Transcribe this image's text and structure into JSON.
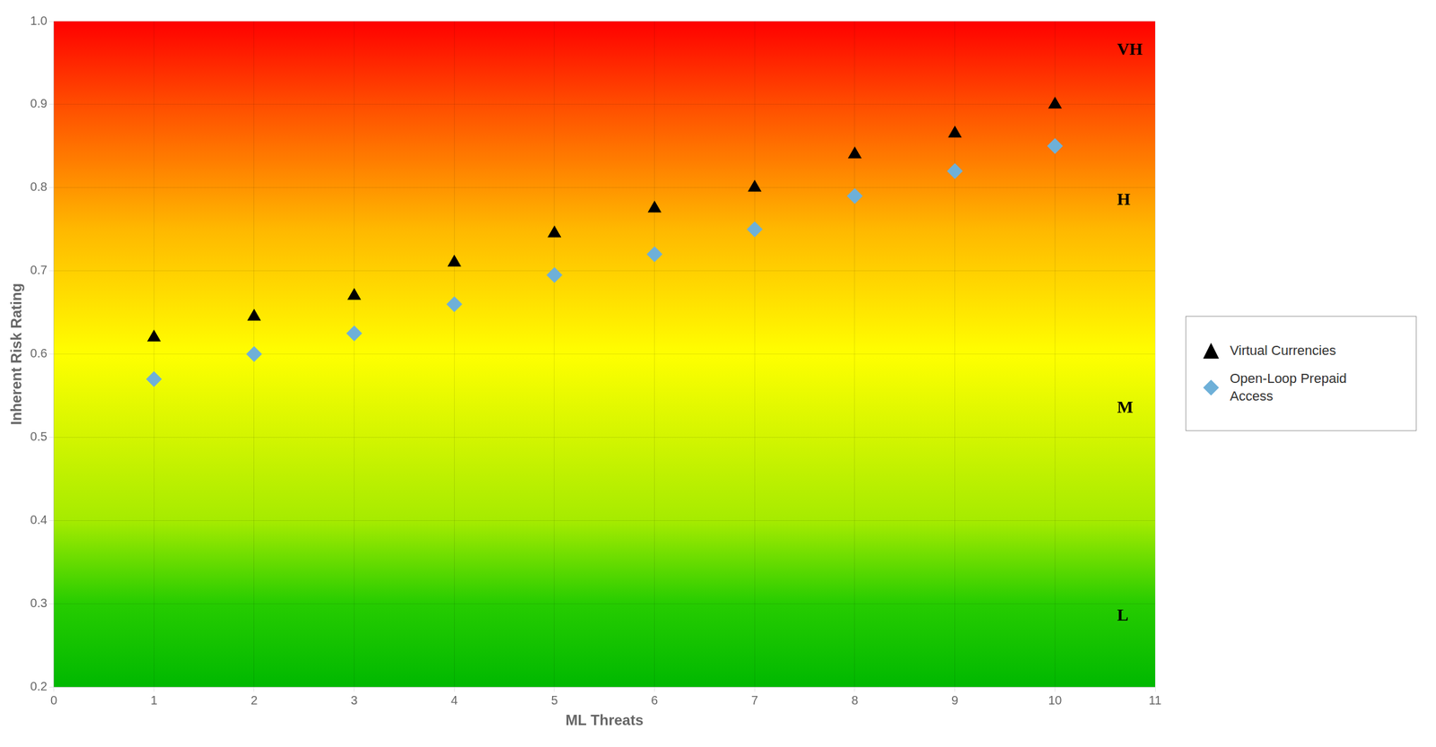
{
  "chart_data": {
    "type": "scatter",
    "xlabel": "ML Threats",
    "ylabel": "Inherent Risk Rating",
    "xlim": [
      0,
      11
    ],
    "ylim": [
      0.2,
      1.0
    ],
    "xticks": [
      0,
      1,
      2,
      3,
      4,
      5,
      6,
      7,
      8,
      9,
      10,
      11
    ],
    "yticks": [
      0.2,
      0.3,
      0.4,
      0.5,
      0.6,
      0.7,
      0.8,
      0.9,
      {
        "value": 1.0,
        "label": "1.0"
      }
    ],
    "grid": true,
    "legend": "right",
    "series": [
      {
        "name": "Virtual Currencies",
        "color": "black",
        "marker": "triangle",
        "x": [
          1,
          2,
          3,
          4,
          5,
          6,
          7,
          8,
          9,
          10
        ],
        "values": [
          0.62,
          0.645,
          0.67,
          0.71,
          0.745,
          0.775,
          0.8,
          0.84,
          0.865,
          0.9
        ]
      },
      {
        "name": "Open-Loop Prepaid\nAccess",
        "color": "#6EB0D8",
        "marker": "diamond",
        "x": [
          1,
          2,
          3,
          4,
          5,
          6,
          7,
          8,
          9,
          10
        ],
        "values": [
          0.57,
          0.6,
          0.625,
          0.66,
          0.695,
          0.72,
          0.75,
          0.79,
          0.82,
          0.85
        ]
      }
    ],
    "annotations": [
      {
        "text": "VH",
        "x": 10.62,
        "y": 0.965
      },
      {
        "text": "H",
        "x": 10.62,
        "y": 0.785
      },
      {
        "text": "M",
        "x": 10.62,
        "y": 0.535
      },
      {
        "text": "L",
        "x": 10.62,
        "y": 0.285
      }
    ]
  }
}
